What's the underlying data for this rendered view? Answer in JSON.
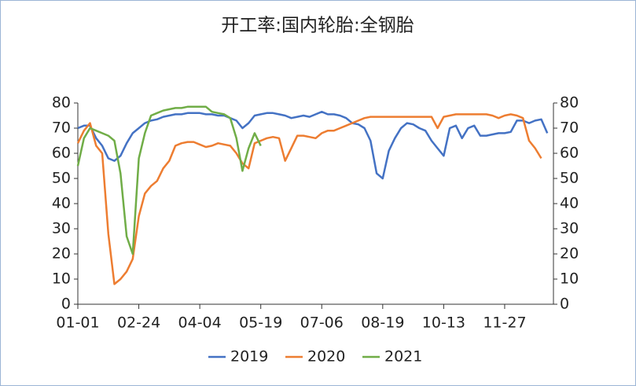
{
  "chart_data": {
    "type": "line",
    "title": "开工率:国内轮胎:全钢胎",
    "categories": [
      "01-01",
      null,
      null,
      null,
      null,
      null,
      null,
      null,
      null,
      null,
      "02-24",
      null,
      null,
      null,
      null,
      null,
      null,
      null,
      null,
      null,
      "04-04",
      null,
      null,
      null,
      null,
      null,
      null,
      null,
      null,
      null,
      "05-19",
      null,
      null,
      null,
      null,
      null,
      null,
      null,
      null,
      null,
      "07-06",
      null,
      null,
      null,
      null,
      null,
      null,
      null,
      null,
      null,
      "08-19",
      null,
      null,
      null,
      null,
      null,
      null,
      null,
      null,
      null,
      "10-13",
      null,
      null,
      null,
      null,
      null,
      null,
      null,
      null,
      null,
      "11-27",
      null,
      null,
      null,
      null,
      null,
      null,
      null,
      null
    ],
    "series": [
      {
        "name": "2019",
        "color": "#4472c4",
        "values": [
          70,
          71,
          71,
          66,
          63,
          58,
          57,
          59,
          64,
          68,
          70,
          72,
          73,
          73.5,
          74.5,
          75,
          75.5,
          75.5,
          76,
          76,
          76,
          75.5,
          75.5,
          75,
          75,
          74,
          73,
          70,
          72,
          75,
          75.5,
          76,
          76,
          75.5,
          75,
          74,
          74.5,
          75,
          74.5,
          75.5,
          76.5,
          75.5,
          75.5,
          75,
          74,
          72,
          71.5,
          70,
          65,
          52,
          50,
          61,
          66,
          70,
          72,
          71.5,
          70,
          69,
          65,
          62,
          59,
          70,
          71,
          66,
          70,
          71,
          67,
          67,
          67.5,
          68,
          68,
          68.5,
          73,
          73,
          72,
          73,
          73.5,
          68,
          null
        ]
      },
      {
        "name": "2020",
        "color": "#ed7d31",
        "values": [
          64,
          69,
          72,
          63,
          60,
          28,
          8,
          10,
          13,
          18,
          35,
          44,
          47,
          49,
          54,
          57,
          63,
          64,
          64.5,
          64.5,
          63.5,
          62.5,
          63,
          64,
          63.5,
          63,
          60,
          56,
          54,
          64,
          65,
          66,
          66.5,
          66,
          57,
          62,
          67,
          67,
          66.5,
          66,
          68,
          69,
          69,
          70,
          71,
          72,
          73,
          74,
          74.5,
          74.5,
          74.5,
          74.5,
          74.5,
          74.5,
          74.5,
          74.5,
          74.5,
          74.5,
          74.5,
          70,
          74.5,
          75,
          75.5,
          75.5,
          75.5,
          75.5,
          75.5,
          75.5,
          75,
          74,
          75,
          75.5,
          75,
          74,
          65,
          62,
          58,
          null,
          null
        ]
      },
      {
        "name": "2021",
        "color": "#70ad47",
        "values": [
          55,
          66,
          70,
          69,
          68,
          67,
          65,
          52,
          27,
          20,
          58,
          68,
          75,
          76,
          77,
          77.5,
          78,
          78,
          78.5,
          78.5,
          78.5,
          78.5,
          76.5,
          76,
          75.5,
          74,
          66,
          53,
          62,
          68,
          63,
          null,
          null,
          null,
          null,
          null,
          null,
          null,
          null,
          null,
          null,
          null,
          null,
          null,
          null,
          null,
          null,
          null,
          null,
          null,
          null,
          null,
          null,
          null,
          null,
          null,
          null,
          null,
          null,
          null,
          null,
          null,
          null,
          null,
          null,
          null,
          null,
          null,
          null,
          null,
          null,
          null,
          null,
          null,
          null,
          null,
          null,
          null,
          null
        ]
      }
    ],
    "ylim": [
      0,
      80
    ],
    "yticks": [
      0,
      10,
      20,
      30,
      40,
      50,
      60,
      70,
      80
    ],
    "y2lim": [
      0,
      80
    ],
    "y2ticks": [
      0,
      10,
      20,
      30,
      40,
      50,
      60,
      70,
      80
    ],
    "legend": "bottom"
  }
}
